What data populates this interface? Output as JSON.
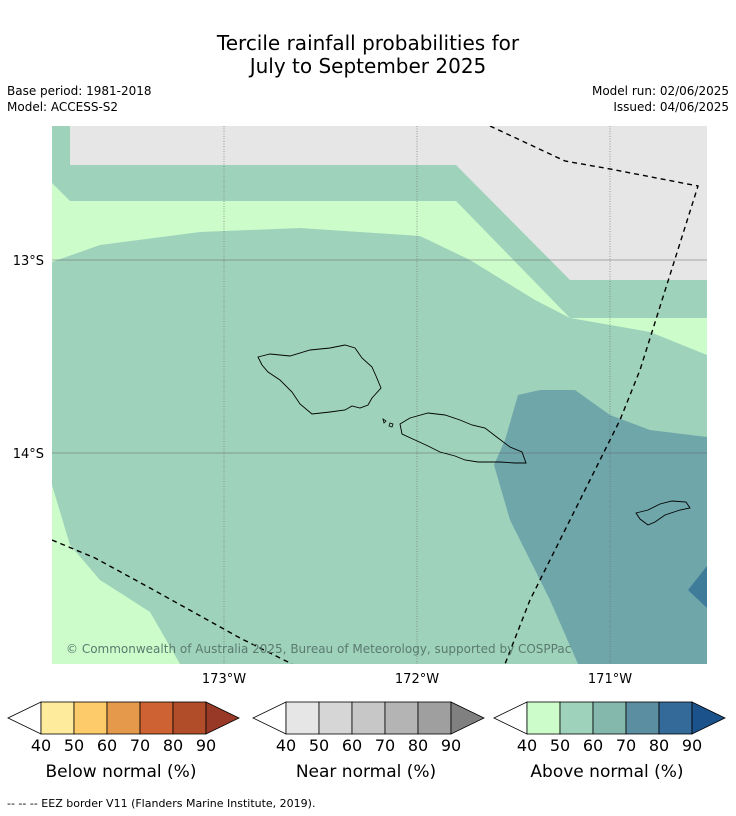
{
  "title": {
    "line1": "Tercile rainfall probabilities for",
    "line2": "July to September 2025"
  },
  "meta": {
    "base_period": "Base period: 1981-2018",
    "model": "Model: ACCESS-S2",
    "model_run": "Model run: 02/06/2025",
    "issued": "Issued: 04/06/2025"
  },
  "map": {
    "lat_labels": [
      "13°S",
      "14°S"
    ],
    "lon_labels": [
      "173°W",
      "172°W",
      "171°W"
    ],
    "copyright": "© Commonwealth of Australia 2025, Bureau of Meteorology, supported by COSPPac"
  },
  "colorbars": [
    {
      "label": "Below normal (%)",
      "ticks": [
        "40",
        "50",
        "60",
        "70",
        "80",
        "90"
      ],
      "colors": [
        "#ffffff",
        "#feeb9c",
        "#fdcb6a",
        "#e59a4b",
        "#cf6232",
        "#b24d2a",
        "#983826"
      ]
    },
    {
      "label": "Near normal (%)",
      "ticks": [
        "40",
        "50",
        "60",
        "70",
        "80",
        "90"
      ],
      "colors": [
        "#ffffff",
        "#e6e6e6",
        "#d6d6d6",
        "#c7c7c7",
        "#b4b4b4",
        "#9f9f9f",
        "#808080"
      ]
    },
    {
      "label": "Above normal (%)",
      "ticks": [
        "40",
        "50",
        "60",
        "70",
        "80",
        "90"
      ],
      "colors": [
        "#ffffff",
        "#ccfcca",
        "#9fd2bb",
        "#84b8ac",
        "#5b8ea0",
        "#336a99",
        "#1b528b"
      ]
    }
  ],
  "footer": "--  --  -- EEZ border V11 (Flanders Marine Institute, 2019)."
}
